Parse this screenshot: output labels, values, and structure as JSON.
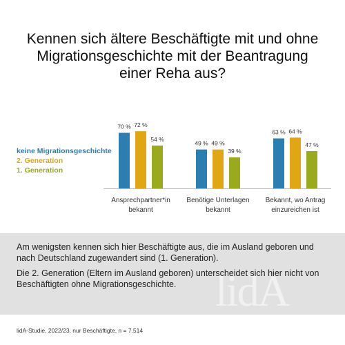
{
  "title": {
    "line1": "Kennen sich ältere Beschäftigte mit und ohne",
    "line2": "Migrationsgeschichte mit der Beantragung",
    "line3": "einer Reha aus?"
  },
  "colors": {
    "keine": "#2a7fb0",
    "gen2": "#e0a613",
    "gen1": "#9aaa1c",
    "axis": "#bbbbbb",
    "panel": "#e1e1e1"
  },
  "chart_data": {
    "type": "bar",
    "categories": [
      [
        "Ansprechpartner*in",
        "bekannt"
      ],
      [
        "Benötige Unterlagen",
        "bekannt"
      ],
      [
        "Bekannt, wo Antrag",
        "einzureichen ist"
      ]
    ],
    "series": [
      {
        "name": "keine Migrationsgeschichte",
        "values": [
          70,
          49,
          63
        ],
        "labels": [
          "70 %",
          "49 %",
          "63 %"
        ]
      },
      {
        "name": "2. Generation",
        "values": [
          72,
          49,
          64
        ],
        "labels": [
          "72 %",
          "49 %",
          "64 %"
        ]
      },
      {
        "name": "1. Generation",
        "values": [
          54,
          39,
          47
        ],
        "labels": [
          "54 %",
          "39 %",
          "47 %"
        ]
      }
    ],
    "ylim": [
      0,
      100
    ],
    "grid": false,
    "legend": "left"
  },
  "legend": {
    "items": [
      "keine Migrationsgeschichte",
      "2. Generation",
      "1. Generation"
    ]
  },
  "panel": {
    "paragraph1": "Am wenigsten kennen sich hier Beschäftigte aus, die im Ausland geboren und nach Deutschland zugewandert sind (1. Generation).",
    "paragraph2": "Die 2. Generation (Eltern im Ausland geboren) unterscheidet sich hier nicht von Beschäftigten ohne Migrationsgeschichte.",
    "watermark": "lidA"
  },
  "source": "lidA-Studie, 2022/23, nur Beschäftigte, n = 7.514"
}
